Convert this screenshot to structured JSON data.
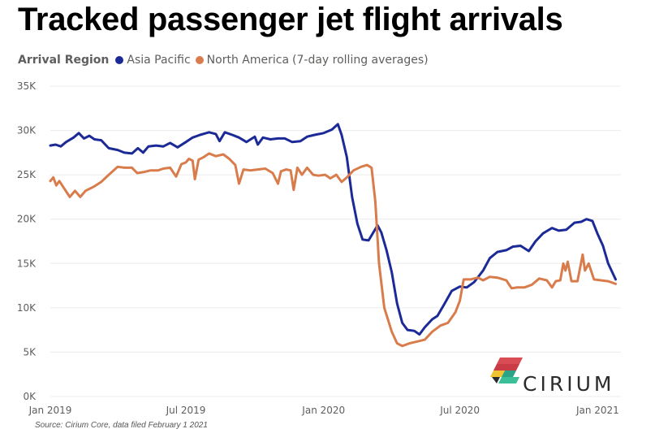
{
  "title": "Tracked passenger jet flight arrivals",
  "legend": {
    "title": "Arrival Region",
    "suffix": "(7-day rolling averages)",
    "position": "top-left"
  },
  "source": "Source: Cirium Core, data filed February 1 2021",
  "brand": {
    "name": "CIRIUM",
    "icon": "cirium-logo-icon"
  },
  "chart_data": {
    "type": "line",
    "title": "Tracked passenger jet flight arrivals",
    "xlabel": "",
    "ylabel": "",
    "ylim": [
      0,
      35000
    ],
    "xlim": [
      "2019-01-01",
      "2021-02-01"
    ],
    "grid": true,
    "y_ticks": [
      {
        "value": 0,
        "label": "0K"
      },
      {
        "value": 5000,
        "label": "5K"
      },
      {
        "value": 10000,
        "label": "10K"
      },
      {
        "value": 15000,
        "label": "15K"
      },
      {
        "value": 20000,
        "label": "20K"
      },
      {
        "value": 25000,
        "label": "25K"
      },
      {
        "value": 30000,
        "label": "30K"
      },
      {
        "value": 35000,
        "label": "35K"
      }
    ],
    "x_ticks": [
      {
        "date": "2019-01-01",
        "label": "Jan 2019"
      },
      {
        "date": "2019-07-01",
        "label": "Jul 2019"
      },
      {
        "date": "2020-01-01",
        "label": "Jan 2020"
      },
      {
        "date": "2020-07-01",
        "label": "Jul 2020"
      },
      {
        "date": "2021-01-01",
        "label": "Jan 2021"
      }
    ],
    "series": [
      {
        "name": "Asia Pacific",
        "color": "#1b2a97",
        "points": [
          [
            "2019-01-01",
            28300
          ],
          [
            "2019-01-08",
            28400
          ],
          [
            "2019-01-15",
            28200
          ],
          [
            "2019-01-22",
            28700
          ],
          [
            "2019-02-01",
            29200
          ],
          [
            "2019-02-08",
            29700
          ],
          [
            "2019-02-15",
            29100
          ],
          [
            "2019-02-22",
            29400
          ],
          [
            "2019-03-01",
            29000
          ],
          [
            "2019-03-10",
            28900
          ],
          [
            "2019-03-20",
            28000
          ],
          [
            "2019-04-01",
            27800
          ],
          [
            "2019-04-10",
            27500
          ],
          [
            "2019-04-20",
            27400
          ],
          [
            "2019-04-28",
            28000
          ],
          [
            "2019-05-05",
            27500
          ],
          [
            "2019-05-12",
            28200
          ],
          [
            "2019-05-22",
            28300
          ],
          [
            "2019-06-01",
            28200
          ],
          [
            "2019-06-10",
            28600
          ],
          [
            "2019-06-20",
            28100
          ],
          [
            "2019-07-01",
            28700
          ],
          [
            "2019-07-10",
            29200
          ],
          [
            "2019-07-20",
            29500
          ],
          [
            "2019-08-01",
            29800
          ],
          [
            "2019-08-10",
            29600
          ],
          [
            "2019-08-15",
            28800
          ],
          [
            "2019-08-22",
            29800
          ],
          [
            "2019-09-01",
            29500
          ],
          [
            "2019-09-10",
            29200
          ],
          [
            "2019-09-20",
            28700
          ],
          [
            "2019-10-01",
            29300
          ],
          [
            "2019-10-05",
            28400
          ],
          [
            "2019-10-12",
            29200
          ],
          [
            "2019-10-22",
            29000
          ],
          [
            "2019-11-01",
            29100
          ],
          [
            "2019-11-10",
            29100
          ],
          [
            "2019-11-20",
            28700
          ],
          [
            "2019-12-01",
            28800
          ],
          [
            "2019-12-10",
            29300
          ],
          [
            "2019-12-20",
            29500
          ],
          [
            "2020-01-01",
            29700
          ],
          [
            "2020-01-12",
            30100
          ],
          [
            "2020-01-20",
            30700
          ],
          [
            "2020-01-25",
            29500
          ],
          [
            "2020-02-01",
            27000
          ],
          [
            "2020-02-08",
            22500
          ],
          [
            "2020-02-15",
            19500
          ],
          [
            "2020-02-22",
            17700
          ],
          [
            "2020-03-01",
            17600
          ],
          [
            "2020-03-08",
            18600
          ],
          [
            "2020-03-13",
            19300
          ],
          [
            "2020-03-18",
            18500
          ],
          [
            "2020-03-25",
            16500
          ],
          [
            "2020-04-01",
            14000
          ],
          [
            "2020-04-08",
            10500
          ],
          [
            "2020-04-15",
            8300
          ],
          [
            "2020-04-22",
            7500
          ],
          [
            "2020-05-01",
            7400
          ],
          [
            "2020-05-08",
            7000
          ],
          [
            "2020-05-15",
            7800
          ],
          [
            "2020-05-25",
            8700
          ],
          [
            "2020-06-01",
            9100
          ],
          [
            "2020-06-10",
            10400
          ],
          [
            "2020-06-20",
            11900
          ],
          [
            "2020-07-01",
            12400
          ],
          [
            "2020-07-10",
            12300
          ],
          [
            "2020-07-20",
            12900
          ],
          [
            "2020-08-01",
            14200
          ],
          [
            "2020-08-10",
            15600
          ],
          [
            "2020-08-20",
            16300
          ],
          [
            "2020-09-01",
            16500
          ],
          [
            "2020-09-10",
            16900
          ],
          [
            "2020-09-20",
            17000
          ],
          [
            "2020-10-01",
            16400
          ],
          [
            "2020-10-10",
            17500
          ],
          [
            "2020-10-20",
            18400
          ],
          [
            "2020-11-01",
            19000
          ],
          [
            "2020-11-10",
            18700
          ],
          [
            "2020-11-20",
            18800
          ],
          [
            "2020-12-01",
            19600
          ],
          [
            "2020-12-10",
            19700
          ],
          [
            "2020-12-17",
            20000
          ],
          [
            "2020-12-25",
            19800
          ],
          [
            "2021-01-01",
            18300
          ],
          [
            "2021-01-08",
            17000
          ],
          [
            "2021-01-15",
            15000
          ],
          [
            "2021-01-25",
            13200
          ]
        ]
      },
      {
        "name": "North America",
        "color": "#d97c4b",
        "points": [
          [
            "2019-01-01",
            24300
          ],
          [
            "2019-01-05",
            24700
          ],
          [
            "2019-01-09",
            23800
          ],
          [
            "2019-01-13",
            24300
          ],
          [
            "2019-01-20",
            23400
          ],
          [
            "2019-01-27",
            22500
          ],
          [
            "2019-02-03",
            23200
          ],
          [
            "2019-02-10",
            22500
          ],
          [
            "2019-02-17",
            23200
          ],
          [
            "2019-03-01",
            23700
          ],
          [
            "2019-03-10",
            24200
          ],
          [
            "2019-03-20",
            25000
          ],
          [
            "2019-04-01",
            25900
          ],
          [
            "2019-04-10",
            25800
          ],
          [
            "2019-04-20",
            25800
          ],
          [
            "2019-04-27",
            25200
          ],
          [
            "2019-05-05",
            25300
          ],
          [
            "2019-05-15",
            25500
          ],
          [
            "2019-05-25",
            25500
          ],
          [
            "2019-06-01",
            25700
          ],
          [
            "2019-06-10",
            25800
          ],
          [
            "2019-06-18",
            24800
          ],
          [
            "2019-06-25",
            26200
          ],
          [
            "2019-07-01",
            26400
          ],
          [
            "2019-07-05",
            26800
          ],
          [
            "2019-07-10",
            26600
          ],
          [
            "2019-07-13",
            24500
          ],
          [
            "2019-07-18",
            26700
          ],
          [
            "2019-07-25",
            27000
          ],
          [
            "2019-08-01",
            27400
          ],
          [
            "2019-08-10",
            27100
          ],
          [
            "2019-08-20",
            27300
          ],
          [
            "2019-08-28",
            26800
          ],
          [
            "2019-09-05",
            26100
          ],
          [
            "2019-09-10",
            24000
          ],
          [
            "2019-09-16",
            25600
          ],
          [
            "2019-09-25",
            25500
          ],
          [
            "2019-10-05",
            25600
          ],
          [
            "2019-10-15",
            25700
          ],
          [
            "2019-10-25",
            25200
          ],
          [
            "2019-11-01",
            24000
          ],
          [
            "2019-11-05",
            25400
          ],
          [
            "2019-11-12",
            25600
          ],
          [
            "2019-11-18",
            25500
          ],
          [
            "2019-11-22",
            23300
          ],
          [
            "2019-11-27",
            25800
          ],
          [
            "2019-12-03",
            25000
          ],
          [
            "2019-12-10",
            25800
          ],
          [
            "2019-12-18",
            25000
          ],
          [
            "2019-12-25",
            24900
          ],
          [
            "2020-01-03",
            25000
          ],
          [
            "2020-01-10",
            24600
          ],
          [
            "2020-01-18",
            25000
          ],
          [
            "2020-01-25",
            24200
          ],
          [
            "2020-02-01",
            24700
          ],
          [
            "2020-02-10",
            25500
          ],
          [
            "2020-02-20",
            25900
          ],
          [
            "2020-02-28",
            26100
          ],
          [
            "2020-03-05",
            25800
          ],
          [
            "2020-03-10",
            22000
          ],
          [
            "2020-03-15",
            15000
          ],
          [
            "2020-03-22",
            10000
          ],
          [
            "2020-04-01",
            7300
          ],
          [
            "2020-04-08",
            6000
          ],
          [
            "2020-04-15",
            5700
          ],
          [
            "2020-04-25",
            6000
          ],
          [
            "2020-05-05",
            6200
          ],
          [
            "2020-05-15",
            6400
          ],
          [
            "2020-05-25",
            7300
          ],
          [
            "2020-06-05",
            8000
          ],
          [
            "2020-06-15",
            8300
          ],
          [
            "2020-06-25",
            9500
          ],
          [
            "2020-07-01",
            10800
          ],
          [
            "2020-07-06",
            13200
          ],
          [
            "2020-07-15",
            13200
          ],
          [
            "2020-07-25",
            13400
          ],
          [
            "2020-08-01",
            13100
          ],
          [
            "2020-08-10",
            13500
          ],
          [
            "2020-08-20",
            13400
          ],
          [
            "2020-09-01",
            13100
          ],
          [
            "2020-09-08",
            12200
          ],
          [
            "2020-09-15",
            12300
          ],
          [
            "2020-09-25",
            12300
          ],
          [
            "2020-10-05",
            12600
          ],
          [
            "2020-10-15",
            13300
          ],
          [
            "2020-10-25",
            13100
          ],
          [
            "2020-11-01",
            12300
          ],
          [
            "2020-11-06",
            13000
          ],
          [
            "2020-11-12",
            13100
          ],
          [
            "2020-11-16",
            15000
          ],
          [
            "2020-11-19",
            14200
          ],
          [
            "2020-11-22",
            15200
          ],
          [
            "2020-11-27",
            13000
          ],
          [
            "2020-12-05",
            13000
          ],
          [
            "2020-12-12",
            16000
          ],
          [
            "2020-12-15",
            14200
          ],
          [
            "2020-12-20",
            15000
          ],
          [
            "2020-12-27",
            13200
          ],
          [
            "2021-01-05",
            13100
          ],
          [
            "2021-01-15",
            13000
          ],
          [
            "2021-01-25",
            12700
          ]
        ]
      }
    ]
  }
}
